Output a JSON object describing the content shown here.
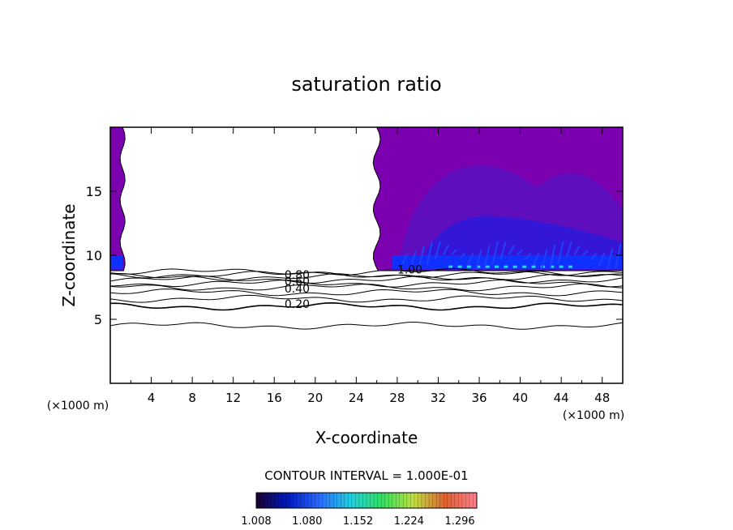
{
  "chart_data": {
    "type": "contour",
    "title": "saturation ratio",
    "xlabel": "X-coordinate",
    "ylabel": "Z-coordinate",
    "x_unit": "(×1000 m)",
    "z_unit": "(×1000 m)",
    "xlim": [
      0,
      50
    ],
    "ylim": [
      0,
      20
    ],
    "x_ticks": [
      4,
      8,
      12,
      16,
      20,
      24,
      28,
      32,
      36,
      40,
      44,
      48
    ],
    "y_ticks": [
      5,
      10,
      15
    ],
    "contour_interval_text": "CONTOUR INTERVAL = 1.000E-01",
    "contour_levels": [
      0.1,
      0.2,
      0.3,
      0.4,
      0.5,
      0.6,
      0.7,
      0.8,
      0.9,
      1.0
    ],
    "contour_labels": [
      {
        "text": "0.20",
        "x": 17.0,
        "z": 6.0
      },
      {
        "text": "0.40",
        "x": 17.0,
        "z": 7.2
      },
      {
        "text": "0.60",
        "x": 17.0,
        "z": 7.8
      },
      {
        "text": "0.80",
        "x": 17.0,
        "z": 8.3
      },
      {
        "text": "1.00",
        "x": 28.0,
        "z": 8.7
      }
    ],
    "contour_heights": [
      4.5,
      6.0,
      6.6,
      7.1,
      7.5,
      7.8,
      8.1,
      8.3,
      8.5,
      8.7
    ],
    "supersaturated_regions": [
      {
        "x_start": 0,
        "x_end": 1.2,
        "z_base": 8.8,
        "z_top": 20
      },
      {
        "x_start": 26.0,
        "x_end": 50,
        "z_base": 8.8,
        "z_top": 20
      }
    ],
    "colorbar": {
      "ticks": [
        "1.008",
        "1.080",
        "1.152",
        "1.224",
        "1.296"
      ],
      "min": 1.008,
      "max": 1.32,
      "colors": [
        "#1a0030",
        "#0018c0",
        "#2a6aff",
        "#20d0e0",
        "#30e060",
        "#c0e040",
        "#e06030",
        "#ff8090"
      ]
    },
    "fill_colors": {
      "background": "#7a00b0",
      "mid": "#5a10c0",
      "core": "#3018d8",
      "base": "#1030ff",
      "highlight": "#20d8e8"
    }
  }
}
